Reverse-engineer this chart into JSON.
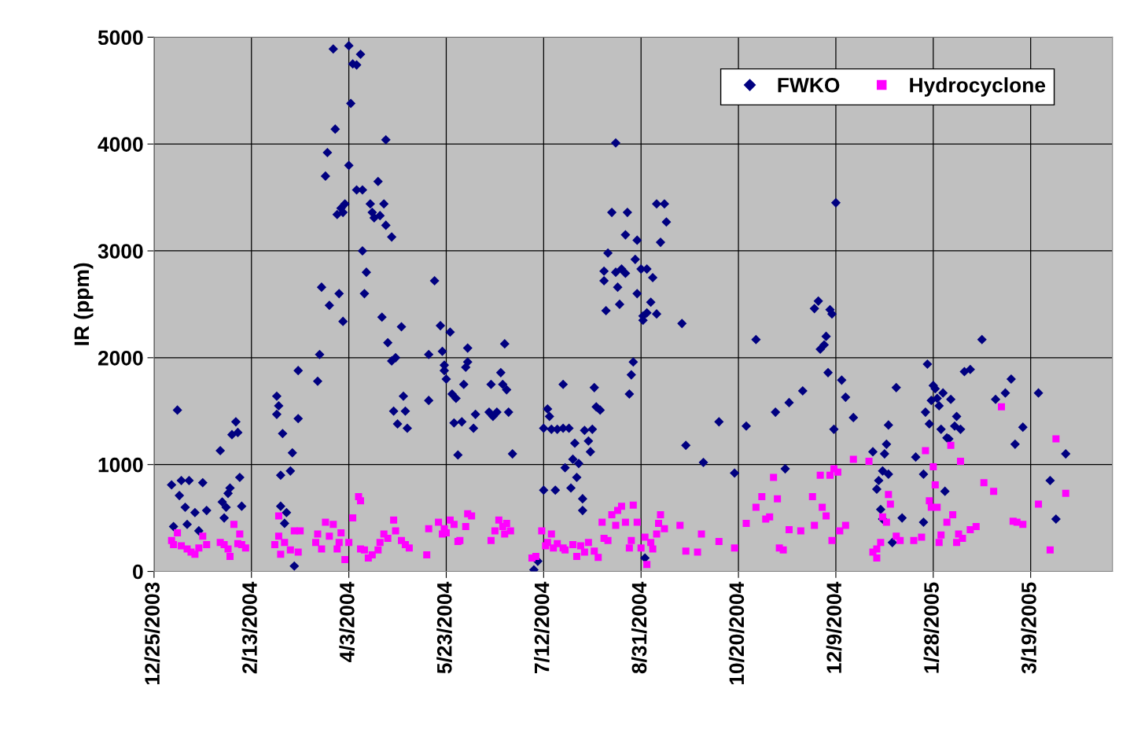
{
  "chart_data": {
    "type": "scatter",
    "ylabel": "IR (ppm)",
    "xlim": [
      "2003-12-25",
      "2005-04-30"
    ],
    "ylim": [
      0,
      5000
    ],
    "yticks": [
      0,
      1000,
      2000,
      3000,
      4000,
      5000
    ],
    "xticks": [
      {
        "value": "2003-12-25",
        "label": "12/25/2003"
      },
      {
        "value": "2004-02-13",
        "label": "2/13/2004"
      },
      {
        "value": "2004-04-03",
        "label": "4/3/2004"
      },
      {
        "value": "2004-05-23",
        "label": "5/23/2004"
      },
      {
        "value": "2004-07-12",
        "label": "7/12/2004"
      },
      {
        "value": "2004-08-31",
        "label": "8/31/2004"
      },
      {
        "value": "2004-10-20",
        "label": "10/20/2004"
      },
      {
        "value": "2004-12-09",
        "label": "12/9/2004"
      },
      {
        "value": "2005-01-28",
        "label": "1/28/2005"
      },
      {
        "value": "2005-03-19",
        "label": "3/19/2005"
      }
    ],
    "grid": true,
    "legend": "top right",
    "series": [
      {
        "name": "FWKO",
        "color": "#000080",
        "marker": "diamond",
        "x": [
          "2004-01-03",
          "2004-01-04",
          "2004-01-06",
          "2004-01-07",
          "2004-01-08",
          "2004-01-10",
          "2004-01-11",
          "2004-01-12",
          "2004-01-15",
          "2004-01-17",
          "2004-01-19",
          "2004-01-21",
          "2004-01-28",
          "2004-01-29",
          "2004-01-30",
          "2004-01-31",
          "2004-02-01",
          "2004-02-02",
          "2004-02-03",
          "2004-02-05",
          "2004-02-06",
          "2004-02-07",
          "2004-02-08",
          "2004-02-26",
          "2004-02-26",
          "2004-02-27",
          "2004-02-28",
          "2004-02-28",
          "2004-02-29",
          "2004-03-01",
          "2004-03-02",
          "2004-03-04",
          "2004-03-05",
          "2004-03-06",
          "2004-03-08",
          "2004-03-08",
          "2004-03-18",
          "2004-03-19",
          "2004-03-20",
          "2004-03-22",
          "2004-03-23",
          "2004-03-24",
          "2004-03-26",
          "2004-03-27",
          "2004-03-28",
          "2004-03-29",
          "2004-03-30",
          "2004-03-31",
          "2004-03-31",
          "2004-04-01",
          "2004-04-03",
          "2004-04-03",
          "2004-04-04",
          "2004-04-05",
          "2004-04-07",
          "2004-04-07",
          "2004-04-09",
          "2004-04-10",
          "2004-04-10",
          "2004-04-11",
          "2004-04-12",
          "2004-04-14",
          "2004-04-15",
          "2004-04-16",
          "2004-04-18",
          "2004-04-19",
          "2004-04-20",
          "2004-04-21",
          "2004-04-22",
          "2004-04-22",
          "2004-04-23",
          "2004-04-25",
          "2004-04-25",
          "2004-04-26",
          "2004-04-27",
          "2004-04-28",
          "2004-04-30",
          "2004-05-01",
          "2004-05-02",
          "2004-05-03",
          "2004-05-14",
          "2004-05-14",
          "2004-05-17",
          "2004-05-20",
          "2004-05-21",
          "2004-05-22",
          "2004-05-22",
          "2004-05-23",
          "2004-05-25",
          "2004-05-26",
          "2004-05-27",
          "2004-05-28",
          "2004-05-29",
          "2004-05-31",
          "2004-06-01",
          "2004-06-02",
          "2004-06-03",
          "2004-06-03",
          "2004-06-06",
          "2004-06-07",
          "2004-06-14",
          "2004-06-15",
          "2004-06-16",
          "2004-06-18",
          "2004-06-20",
          "2004-06-21",
          "2004-06-22",
          "2004-06-23",
          "2004-06-24",
          "2004-06-26",
          "2004-07-07",
          "2004-07-09",
          "2004-07-12",
          "2004-07-12",
          "2004-07-14",
          "2004-07-15",
          "2004-07-16",
          "2004-07-18",
          "2004-07-19",
          "2004-07-22",
          "2004-07-22",
          "2004-07-23",
          "2004-07-25",
          "2004-07-26",
          "2004-07-27",
          "2004-07-28",
          "2004-07-29",
          "2004-07-30",
          "2004-08-01",
          "2004-08-01",
          "2004-08-02",
          "2004-08-04",
          "2004-08-05",
          "2004-08-06",
          "2004-08-07",
          "2004-08-08",
          "2004-08-10",
          "2004-08-12",
          "2004-08-12",
          "2004-08-13",
          "2004-08-14",
          "2004-08-16",
          "2004-08-18",
          "2004-08-18",
          "2004-08-19",
          "2004-08-20",
          "2004-08-21",
          "2004-08-23",
          "2004-08-23",
          "2004-08-24",
          "2004-08-25",
          "2004-08-26",
          "2004-08-27",
          "2004-08-28",
          "2004-08-29",
          "2004-08-29",
          "2004-08-31",
          "2004-09-01",
          "2004-09-01",
          "2004-09-02",
          "2004-09-03",
          "2004-09-03",
          "2004-09-05",
          "2004-09-06",
          "2004-09-08",
          "2004-09-08",
          "2004-09-10",
          "2004-09-12",
          "2004-09-13",
          "2004-09-21",
          "2004-09-23",
          "2004-10-02",
          "2004-10-10",
          "2004-10-18",
          "2004-10-24",
          "2004-10-29",
          "2004-11-08",
          "2004-11-13",
          "2004-11-15",
          "2004-11-22",
          "2004-11-28",
          "2004-11-30",
          "2004-12-01",
          "2004-12-03",
          "2004-12-04",
          "2004-12-05",
          "2004-12-06",
          "2004-12-07",
          "2004-12-08",
          "2004-12-09",
          "2004-12-12",
          "2004-12-14",
          "2004-12-18",
          "2004-12-28",
          "2004-12-30",
          "2004-12-31",
          "2005-01-01",
          "2005-01-02",
          "2005-01-02",
          "2005-01-03",
          "2005-01-04",
          "2005-01-05",
          "2005-01-05",
          "2005-01-07",
          "2005-01-09",
          "2005-01-12",
          "2005-01-19",
          "2005-01-23",
          "2005-01-23",
          "2005-01-24",
          "2005-01-25",
          "2005-01-26",
          "2005-01-27",
          "2005-01-28",
          "2005-01-29",
          "2005-01-30",
          "2005-01-31",
          "2005-02-01",
          "2005-02-02",
          "2005-02-03",
          "2005-02-04",
          "2005-02-05",
          "2005-02-06",
          "2005-02-08",
          "2005-02-09",
          "2005-02-11",
          "2005-02-13",
          "2005-02-16",
          "2005-02-22",
          "2005-03-01",
          "2005-03-06",
          "2005-03-09",
          "2005-03-11",
          "2005-03-15",
          "2005-03-23",
          "2005-03-29",
          "2005-04-01",
          "2005-04-06"
        ],
        "values": [
          810,
          420,
          1510,
          710,
          850,
          600,
          440,
          850,
          550,
          380,
          830,
          570,
          1130,
          650,
          500,
          600,
          730,
          780,
          1280,
          1400,
          1300,
          880,
          610,
          1470,
          1640,
          1550,
          900,
          610,
          1290,
          450,
          550,
          940,
          1110,
          50,
          1880,
          1430,
          1780,
          2030,
          2660,
          3700,
          3920,
          2490,
          4890,
          4140,
          3340,
          2600,
          3400,
          3360,
          2340,
          3440,
          4920,
          3800,
          4380,
          4750,
          3570,
          4740,
          4840,
          3570,
          3000,
          2600,
          2800,
          3440,
          3360,
          3310,
          3650,
          3330,
          2380,
          3440,
          3240,
          4040,
          2140,
          1970,
          3130,
          1500,
          2000,
          1380,
          2290,
          1640,
          1500,
          1340,
          2030,
          1600,
          2720,
          2300,
          2060,
          1930,
          1880,
          1800,
          2240,
          1660,
          1390,
          1620,
          1090,
          1400,
          1750,
          1910,
          2090,
          1960,
          1340,
          1470,
          1490,
          1750,
          1450,
          1490,
          1860,
          1750,
          2130,
          1700,
          1490,
          1100,
          15,
          95,
          1340,
          760,
          1520,
          1450,
          1330,
          760,
          1330,
          1340,
          1750,
          970,
          1340,
          780,
          1050,
          1200,
          880,
          1010,
          680,
          570,
          1320,
          1220,
          1120,
          1330,
          1720,
          1540,
          1510,
          2810,
          2720,
          2440,
          2980,
          3360,
          4010,
          2800,
          2660,
          2500,
          2830,
          2790,
          3150,
          3360,
          1660,
          1840,
          1960,
          2920,
          2600,
          3100,
          2830,
          2390,
          2350,
          125,
          2420,
          2830,
          2520,
          2750,
          2410,
          3440,
          3080,
          3440,
          3270,
          2320,
          1180,
          1020,
          1400,
          920,
          1360,
          2170,
          1490,
          960,
          1580,
          1690,
          2460,
          2530,
          2080,
          2120,
          2200,
          1860,
          2450,
          2410,
          1330,
          3450,
          1790,
          1630,
          1440,
          1120,
          770,
          850,
          580,
          490,
          940,
          1100,
          1190,
          910,
          1370,
          270,
          1720,
          500,
          1070,
          460,
          910,
          1490,
          1940,
          1380,
          1600,
          1740,
          1710,
          1620,
          1550,
          1330,
          1670,
          750,
          1250,
          1240,
          1610,
          1360,
          1450,
          1330,
          1870,
          1890,
          2170,
          1610,
          1670,
          1800,
          1190,
          1350,
          1670,
          850,
          490,
          1100
        ]
      },
      {
        "name": "Hydrocyclone",
        "color": "#ff00ff",
        "marker": "square",
        "x": [
          "2004-01-03",
          "2004-01-04",
          "2004-01-06",
          "2004-01-08",
          "2004-01-11",
          "2004-01-13",
          "2004-01-15",
          "2004-01-17",
          "2004-01-19",
          "2004-01-21",
          "2004-01-28",
          "2004-01-30",
          "2004-02-01",
          "2004-02-02",
          "2004-02-04",
          "2004-02-06",
          "2004-02-07",
          "2004-02-08",
          "2004-02-10",
          "2004-02-27",
          "2004-02-25",
          "2004-02-27",
          "2004-02-28",
          "2004-03-01",
          "2004-03-04",
          "2004-03-06",
          "2004-03-08",
          "2004-03-09",
          "2004-03-17",
          "2004-03-18",
          "2004-03-20",
          "2004-03-22",
          "2004-03-24",
          "2004-03-26",
          "2004-03-28",
          "2004-03-29",
          "2004-03-30",
          "2004-04-01",
          "2004-04-03",
          "2004-04-05",
          "2004-04-08",
          "2004-04-09",
          "2004-04-09",
          "2004-04-11",
          "2004-04-13",
          "2004-04-15",
          "2004-04-18",
          "2004-04-19",
          "2004-04-21",
          "2004-04-23",
          "2004-04-26",
          "2004-04-27",
          "2004-04-30",
          "2004-05-02",
          "2004-05-04",
          "2004-05-13",
          "2004-05-14",
          "2004-05-19",
          "2004-05-21",
          "2004-05-22",
          "2004-05-23",
          "2004-05-25",
          "2004-05-27",
          "2004-05-29",
          "2004-05-30",
          "2004-06-02",
          "2004-06-03",
          "2004-06-05",
          "2004-06-15",
          "2004-06-17",
          "2004-06-19",
          "2004-06-21",
          "2004-06-22",
          "2004-06-23",
          "2004-06-25",
          "2004-07-06",
          "2004-07-08",
          "2004-07-11",
          "2004-07-13",
          "2004-07-14",
          "2004-07-16",
          "2004-07-17",
          "2004-07-19",
          "2004-07-22",
          "2004-07-23",
          "2004-07-27",
          "2004-07-29",
          "2004-07-31",
          "2004-08-02",
          "2004-08-04",
          "2004-08-07",
          "2004-08-09",
          "2004-08-11",
          "2004-08-12",
          "2004-08-14",
          "2004-08-16",
          "2004-08-18",
          "2004-08-19",
          "2004-08-21",
          "2004-08-23",
          "2004-08-25",
          "2004-08-26",
          "2004-08-27",
          "2004-08-29",
          "2004-08-31",
          "2004-09-02",
          "2004-09-03",
          "2004-09-05",
          "2004-09-06",
          "2004-09-08",
          "2004-09-09",
          "2004-09-10",
          "2004-09-12",
          "2004-09-20",
          "2004-09-23",
          "2004-09-29",
          "2004-10-01",
          "2004-10-10",
          "2004-10-18",
          "2004-10-24",
          "2004-10-29",
          "2004-11-01",
          "2004-11-03",
          "2004-11-05",
          "2004-11-07",
          "2004-11-09",
          "2004-11-10",
          "2004-11-12",
          "2004-11-15",
          "2004-11-21",
          "2004-11-27",
          "2004-11-28",
          "2004-12-01",
          "2004-12-02",
          "2004-12-04",
          "2004-12-06",
          "2004-12-07",
          "2004-12-08",
          "2004-12-10",
          "2004-12-11",
          "2004-12-14",
          "2004-12-18",
          "2004-12-26",
          "2004-12-28",
          "2004-12-30",
          "2004-12-30",
          "2005-01-01",
          "2005-01-02",
          "2005-01-04",
          "2005-01-05",
          "2005-01-06",
          "2005-01-09",
          "2005-01-11",
          "2005-01-18",
          "2005-01-22",
          "2005-01-24",
          "2005-01-26",
          "2005-01-27",
          "2005-01-28",
          "2005-01-29",
          "2005-01-30",
          "2005-01-31",
          "2005-02-01",
          "2005-02-04",
          "2005-02-06",
          "2005-02-07",
          "2005-02-09",
          "2005-02-10",
          "2005-02-12",
          "2005-02-11",
          "2005-02-16",
          "2005-02-19",
          "2005-02-23",
          "2005-02-28",
          "2005-03-04",
          "2005-03-10",
          "2005-03-12",
          "2005-03-15",
          "2005-03-23",
          "2005-03-29",
          "2005-04-01",
          "2005-04-06"
        ],
        "values": [
          290,
          250,
          360,
          240,
          210,
          180,
          160,
          220,
          330,
          250,
          270,
          250,
          210,
          140,
          440,
          260,
          350,
          250,
          220,
          520,
          250,
          330,
          160,
          270,
          200,
          380,
          180,
          380,
          270,
          350,
          210,
          460,
          330,
          440,
          210,
          270,
          360,
          110,
          270,
          500,
          700,
          660,
          210,
          200,
          125,
          155,
          200,
          270,
          350,
          310,
          480,
          380,
          290,
          250,
          220,
          155,
          400,
          460,
          350,
          400,
          360,
          480,
          440,
          280,
          290,
          420,
          540,
          520,
          290,
          380,
          480,
          420,
          350,
          450,
          380,
          125,
          140,
          380,
          240,
          270,
          350,
          220,
          260,
          220,
          200,
          250,
          140,
          240,
          180,
          270,
          190,
          130,
          460,
          310,
          290,
          530,
          430,
          570,
          610,
          460,
          220,
          290,
          620,
          460,
          220,
          320,
          65,
          270,
          210,
          350,
          450,
          530,
          400,
          430,
          190,
          180,
          350,
          280,
          220,
          450,
          600,
          700,
          490,
          510,
          880,
          680,
          220,
          200,
          390,
          380,
          700,
          430,
          900,
          600,
          520,
          900,
          290,
          960,
          930,
          380,
          430,
          1050,
          1030,
          180,
          125,
          210,
          270,
          510,
          460,
          720,
          630,
          330,
          290,
          290,
          320,
          1130,
          660,
          600,
          980,
          810,
          600,
          270,
          340,
          460,
          1180,
          530,
          270,
          350,
          310,
          1030,
          390,
          420,
          830,
          750,
          1540,
          470,
          460,
          440,
          630,
          200,
          1240,
          730
        ]
      }
    ]
  }
}
